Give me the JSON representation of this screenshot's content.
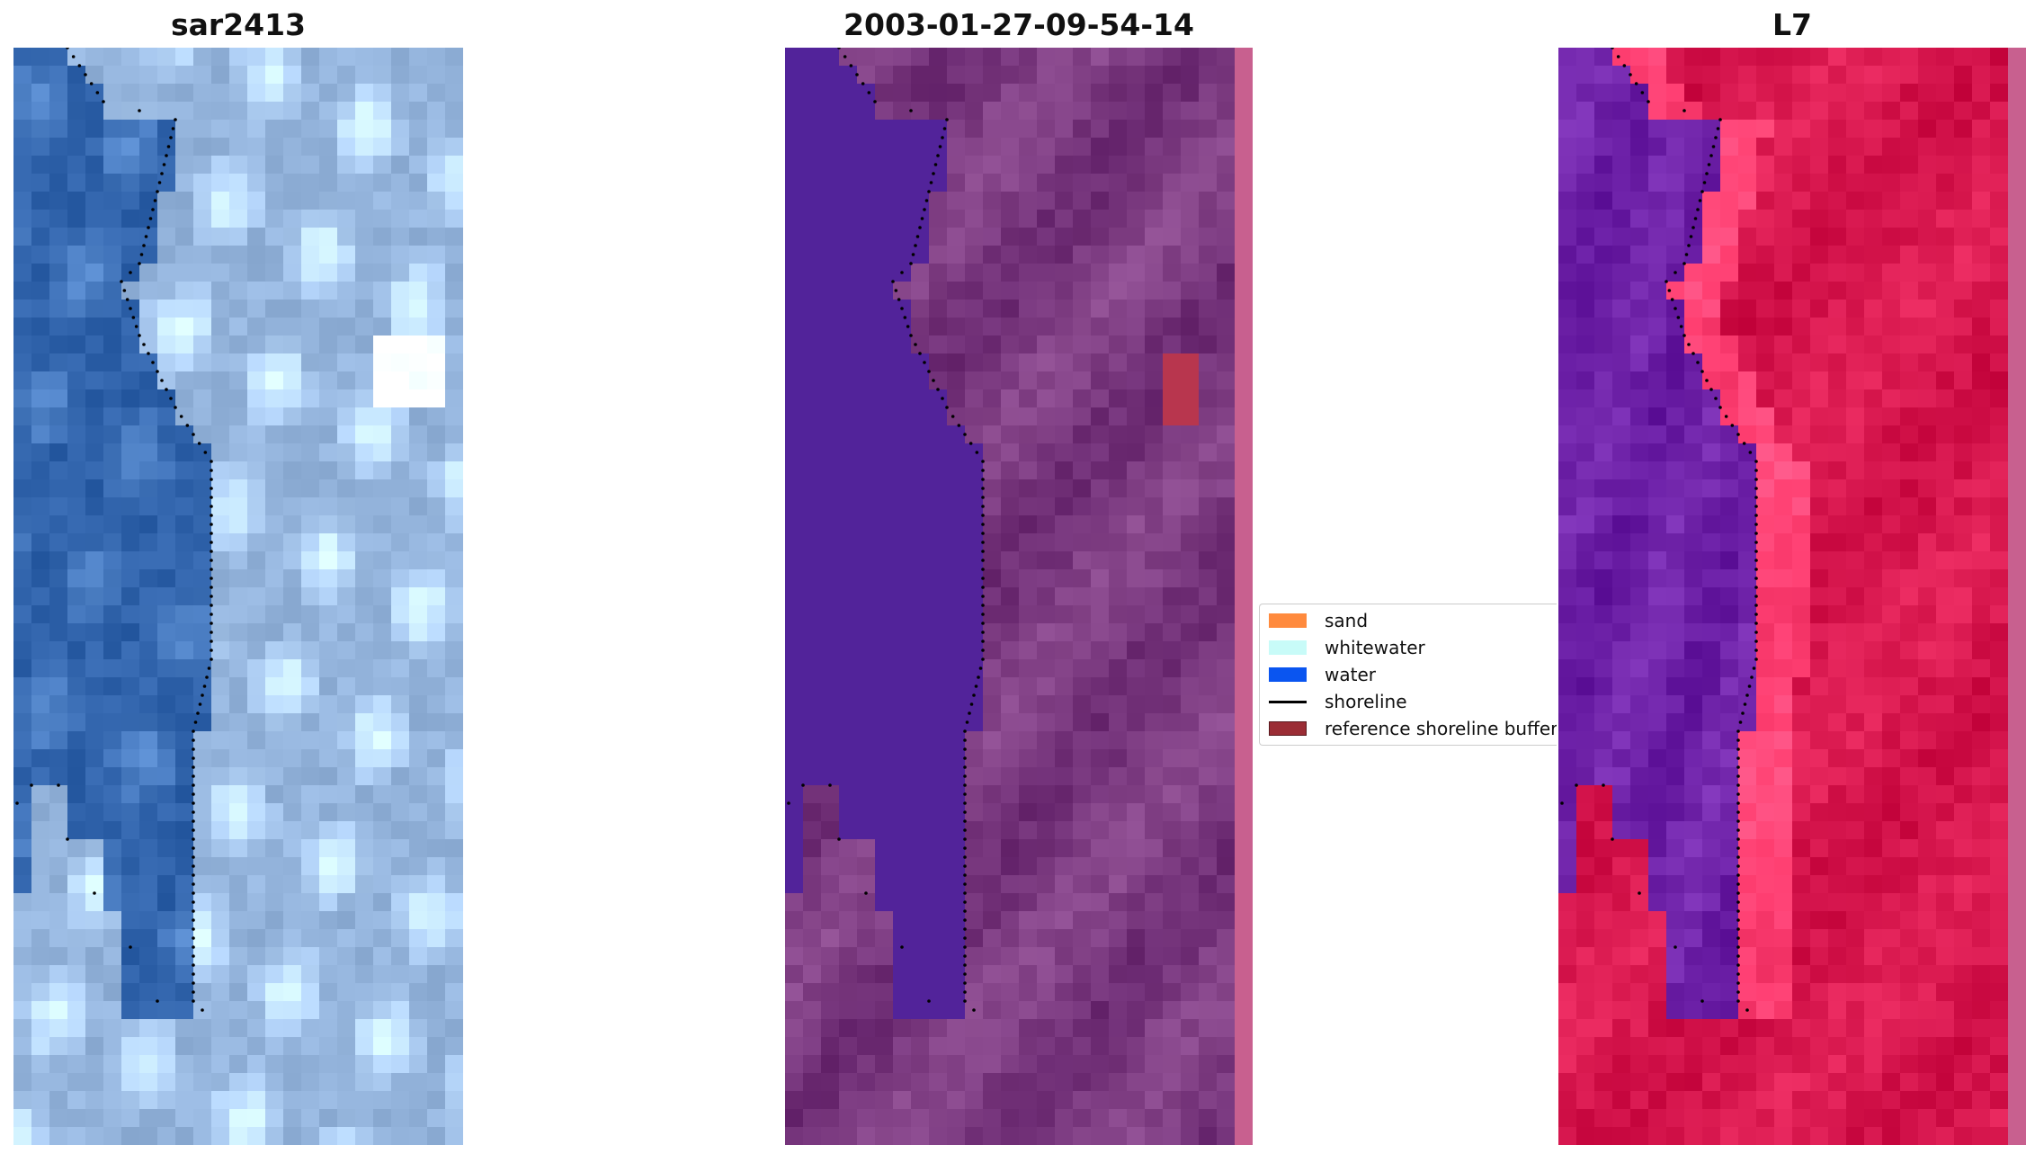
{
  "panels": [
    {
      "title": "sar2413",
      "name": "rgb-panel"
    },
    {
      "title": "2003-01-27-09-54-14",
      "name": "classification-panel"
    },
    {
      "title": "L7",
      "name": "index-panel"
    }
  ],
  "legend": {
    "items": [
      {
        "label": "sand",
        "color": "#ff8a3d",
        "kind": "patch"
      },
      {
        "label": "whitewater",
        "color": "#c8fbf8",
        "kind": "patch"
      },
      {
        "label": "water",
        "color": "#0a55f0",
        "kind": "patch"
      },
      {
        "label": "shoreline",
        "color": "#000000",
        "kind": "line"
      },
      {
        "label": "reference shoreline buffer",
        "color": "#9b2d35",
        "kind": "patch"
      }
    ]
  },
  "colors": {
    "rgb_water": "#2f62aa",
    "rgb_land": "#7f9fc9",
    "class_water": "#52239a",
    "class_land": "#7b3a80",
    "index_water": "#6e22a8",
    "index_land": "#d8184f",
    "buffer_strip": "#c8608f"
  }
}
